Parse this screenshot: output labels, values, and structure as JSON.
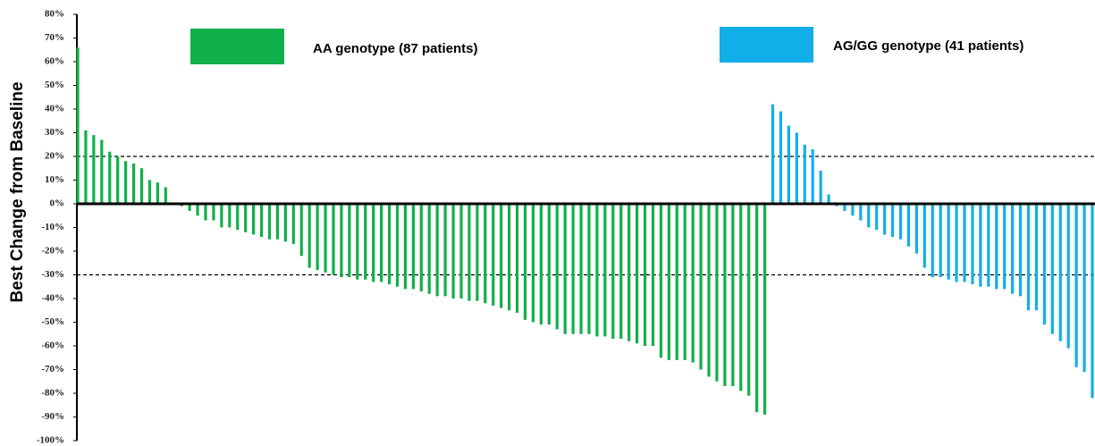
{
  "chart_data": {
    "type": "waterfall",
    "y_label": "Best Change from Baseline",
    "ylim": [
      -100,
      80
    ],
    "yticks": [
      {
        "value": -100,
        "label": "-100%"
      },
      {
        "value": -90,
        "label": "-90%"
      },
      {
        "value": -80,
        "label": "-80%"
      },
      {
        "value": -70,
        "label": "-70%"
      },
      {
        "value": -60,
        "label": "-60%"
      },
      {
        "value": -50,
        "label": "-50%"
      },
      {
        "value": -40,
        "label": "-40%"
      },
      {
        "value": -30,
        "label": "-30%"
      },
      {
        "value": -20,
        "label": "-20%"
      },
      {
        "value": -10,
        "label": "-10%"
      },
      {
        "value": 0,
        "label": "0%"
      },
      {
        "value": 10,
        "label": "10%"
      },
      {
        "value": 20,
        "label": "20%"
      },
      {
        "value": 30,
        "label": "30%"
      },
      {
        "value": 40,
        "label": "40%"
      },
      {
        "value": 50,
        "label": "50%"
      },
      {
        "value": 60,
        "label": "60%"
      },
      {
        "value": 70,
        "label": "70%"
      },
      {
        "value": 80,
        "label": "80%"
      }
    ],
    "reference_lines": [
      20,
      -30
    ],
    "series": [
      {
        "name": "AA genotype (87 patients)",
        "color": "#11b04a",
        "values": [
          66,
          31,
          29,
          27,
          22,
          20,
          18,
          17,
          15,
          10,
          9,
          7,
          0.5,
          -1,
          -3,
          -5,
          -7,
          -7,
          -10,
          -10,
          -11,
          -12,
          -13,
          -14,
          -15,
          -15,
          -16,
          -17,
          -22,
          -27,
          -28,
          -29,
          -30,
          -31,
          -31,
          -32,
          -32,
          -33,
          -33,
          -34,
          -35,
          -36,
          -36,
          -37,
          -38,
          -39,
          -39,
          -40,
          -40,
          -41,
          -41,
          -42,
          -43,
          -44,
          -45,
          -46,
          -49,
          -50,
          -51,
          -51,
          -53,
          -55,
          -55,
          -55,
          -55,
          -56,
          -56,
          -57,
          -57,
          -58,
          -59,
          -60,
          -60,
          -65,
          -66,
          -66,
          -66,
          -67,
          -70,
          -73,
          -75,
          -77,
          -77,
          -79,
          -81,
          -88,
          -89
        ]
      },
      {
        "name": "AG/GG genotype (41 patients)",
        "color": "#12aee8",
        "values": [
          42,
          39,
          33,
          30,
          25,
          23,
          14,
          4,
          -1,
          -3,
          -5,
          -7,
          -10,
          -11,
          -13,
          -14,
          -15,
          -18,
          -21,
          -27,
          -31,
          -31,
          -32,
          -33,
          -33,
          -34,
          -35,
          -35,
          -36,
          -36,
          -38,
          -39,
          -45,
          -45,
          -51,
          -55,
          -58,
          -61,
          -69,
          -71,
          -82
        ]
      }
    ]
  }
}
